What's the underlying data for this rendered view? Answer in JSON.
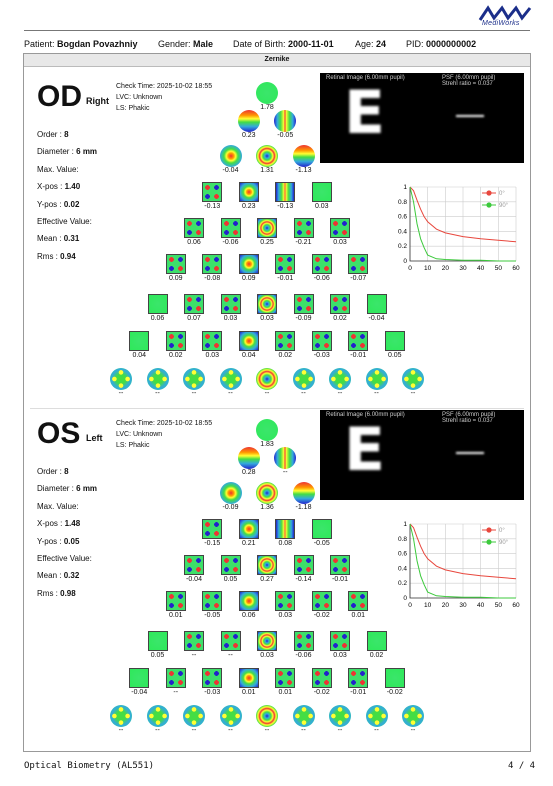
{
  "brand": "MediWorks",
  "patient": {
    "patient_label": "Patient:",
    "patient_name": "Bogdan Povazhniy",
    "gender_label": "Gender:",
    "gender": "Male",
    "dob_label": "Date of Birth:",
    "dob": "2000-11-01",
    "age_label": "Age:",
    "age": "24",
    "pid_label": "PID:",
    "pid": "0000000002"
  },
  "section_title": "Zernike",
  "eyes": [
    {
      "code": "OD",
      "side": "Right",
      "check_time": "Check Time: 2025-10-02 18:55",
      "lvc": "LVC: Unknown",
      "ls": "LS: Phakic",
      "order_label": "Order :",
      "order": "8",
      "diameter_label": "Diameter :",
      "diameter": "6 mm",
      "max_label": "Max. Value:",
      "xpos_label": "X-pos :",
      "xpos": "1.40",
      "ypos_label": "Y-pos :",
      "ypos": "0.02",
      "eff_label": "Effective Value:",
      "mean_label": "Mean :",
      "mean": "0.31",
      "rms_label": "Rms :",
      "rms": "0.94",
      "retina_label": "Retinal Image (6.00mm pupil)",
      "psf_label": "PSF (6.00mm pupil)",
      "strehl": "Strehl ratio = 0.037",
      "rows": [
        [
          "1.78"
        ],
        [
          "0.23",
          "-0.05"
        ],
        [
          "-0.04",
          "1.31",
          "-1.13"
        ],
        [
          "-0.13",
          "0.23",
          "-0.13",
          "0.03"
        ],
        [
          "0.06",
          "-0.06",
          "0.25",
          "-0.21",
          "0.03"
        ],
        [
          "0.09",
          "-0.08",
          "0.09",
          "-0.01",
          "-0.06",
          "-0.07"
        ],
        [
          "0.06",
          "0.07",
          "0.03",
          "0.03",
          "-0.09",
          "0.02",
          "-0.04"
        ],
        [
          "0.04",
          "0.02",
          "0.03",
          "0.04",
          "0.02",
          "-0.03",
          "-0.01",
          "0.05"
        ],
        [
          "--",
          "--",
          "--",
          "--",
          "--",
          "--",
          "--",
          "--",
          "--"
        ]
      ]
    },
    {
      "code": "OS",
      "side": "Left",
      "check_time": "Check Time: 2025-10-02 18:55",
      "lvc": "LVC: Unknown",
      "ls": "LS: Phakic",
      "order_label": "Order :",
      "order": "8",
      "diameter_label": "Diameter :",
      "diameter": "6 mm",
      "max_label": "Max. Value:",
      "xpos_label": "X-pos :",
      "xpos": "1.48",
      "ypos_label": "Y-pos :",
      "ypos": "0.05",
      "eff_label": "Effective Value:",
      "mean_label": "Mean :",
      "mean": "0.32",
      "rms_label": "Rms :",
      "rms": "0.98",
      "retina_label": "Retinal Image (6.00mm pupil)",
      "psf_label": "PSF (6.00mm pupil)",
      "strehl": "Strehl ratio = 0.037",
      "rows": [
        [
          "1.83"
        ],
        [
          "0.28",
          "--"
        ],
        [
          "-0.09",
          "1.36",
          "-1.18"
        ],
        [
          "-0.15",
          "0.21",
          "0.08",
          "-0.05"
        ],
        [
          "-0.04",
          "0.05",
          "0.27",
          "-0.14",
          "-0.01"
        ],
        [
          "0.01",
          "-0.05",
          "0.06",
          "0.03",
          "-0.02",
          "0.01"
        ],
        [
          "0.05",
          "--",
          "--",
          "0.03",
          "-0.06",
          "0.03",
          "0.02"
        ],
        [
          "-0.04",
          "--",
          "-0.03",
          "0.01",
          "0.01",
          "-0.02",
          "-0.01",
          "-0.02"
        ],
        [
          "--",
          "--",
          "--",
          "--",
          "--",
          "--",
          "--",
          "--",
          "--"
        ]
      ]
    }
  ],
  "chart_data": [
    {
      "type": "line",
      "x": [
        0,
        2,
        4,
        6,
        8,
        10,
        15,
        20,
        30,
        40,
        50,
        60
      ],
      "series": [
        {
          "name": "0°",
          "color": "#e8473d",
          "values": [
            1.0,
            0.95,
            0.82,
            0.7,
            0.6,
            0.53,
            0.43,
            0.38,
            0.33,
            0.3,
            0.28,
            0.26
          ]
        },
        {
          "name": "90°",
          "color": "#3cc93c",
          "values": [
            1.0,
            0.8,
            0.5,
            0.3,
            0.18,
            0.08,
            0.03,
            0.02,
            0.01,
            0.01,
            0.0,
            0.0
          ]
        }
      ],
      "xlim": [
        0,
        60
      ],
      "ylim": [
        0,
        1
      ],
      "xticks": [
        "0",
        "10",
        "20",
        "30",
        "40",
        "50",
        "60"
      ],
      "yticks": [
        "0",
        "0.2",
        "0.4",
        "0.6",
        "0.8",
        "1"
      ],
      "grid": true,
      "legend": "top-right"
    },
    {
      "type": "line",
      "x": [
        0,
        2,
        4,
        6,
        8,
        10,
        15,
        20,
        30,
        40,
        50,
        60
      ],
      "series": [
        {
          "name": "0°",
          "color": "#e8473d",
          "values": [
            1.0,
            0.95,
            0.82,
            0.7,
            0.6,
            0.53,
            0.43,
            0.38,
            0.33,
            0.3,
            0.28,
            0.26
          ]
        },
        {
          "name": "90°",
          "color": "#3cc93c",
          "values": [
            1.0,
            0.8,
            0.5,
            0.3,
            0.18,
            0.08,
            0.03,
            0.02,
            0.01,
            0.01,
            0.0,
            0.0
          ]
        }
      ],
      "xlim": [
        0,
        60
      ],
      "ylim": [
        0,
        1
      ],
      "xticks": [
        "0",
        "10",
        "20",
        "30",
        "40",
        "50",
        "60"
      ],
      "yticks": [
        "0",
        "0.2",
        "0.4",
        "0.6",
        "0.8",
        "1"
      ],
      "grid": true,
      "legend": "top-right"
    }
  ],
  "footer": {
    "title": "Optical Biometry (AL551)",
    "page": "4 / 4"
  }
}
